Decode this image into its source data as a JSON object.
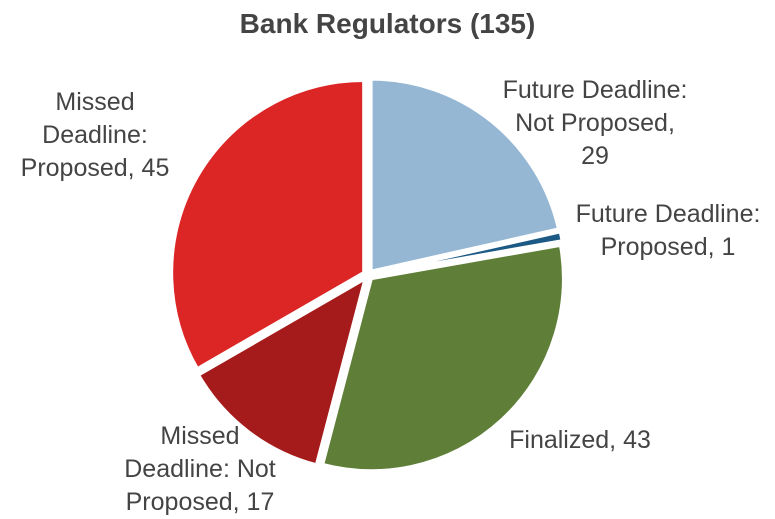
{
  "chart_data": {
    "type": "pie",
    "title": "Bank Regulators (135)",
    "values": [
      29,
      1,
      43,
      17,
      45
    ],
    "value_labels": [
      "Future Deadline:\nNot Proposed,\n29",
      "Future Deadline:\nProposed, 1",
      "Finalized, 43",
      "Missed\nDeadline: Not\nProposed, 17",
      "Missed\nDeadline:\nProposed, 45"
    ],
    "colors": [
      "#95b7d4",
      "#1c5a85",
      "#5f7f38",
      "#a51a1a",
      "#dc2525"
    ]
  }
}
